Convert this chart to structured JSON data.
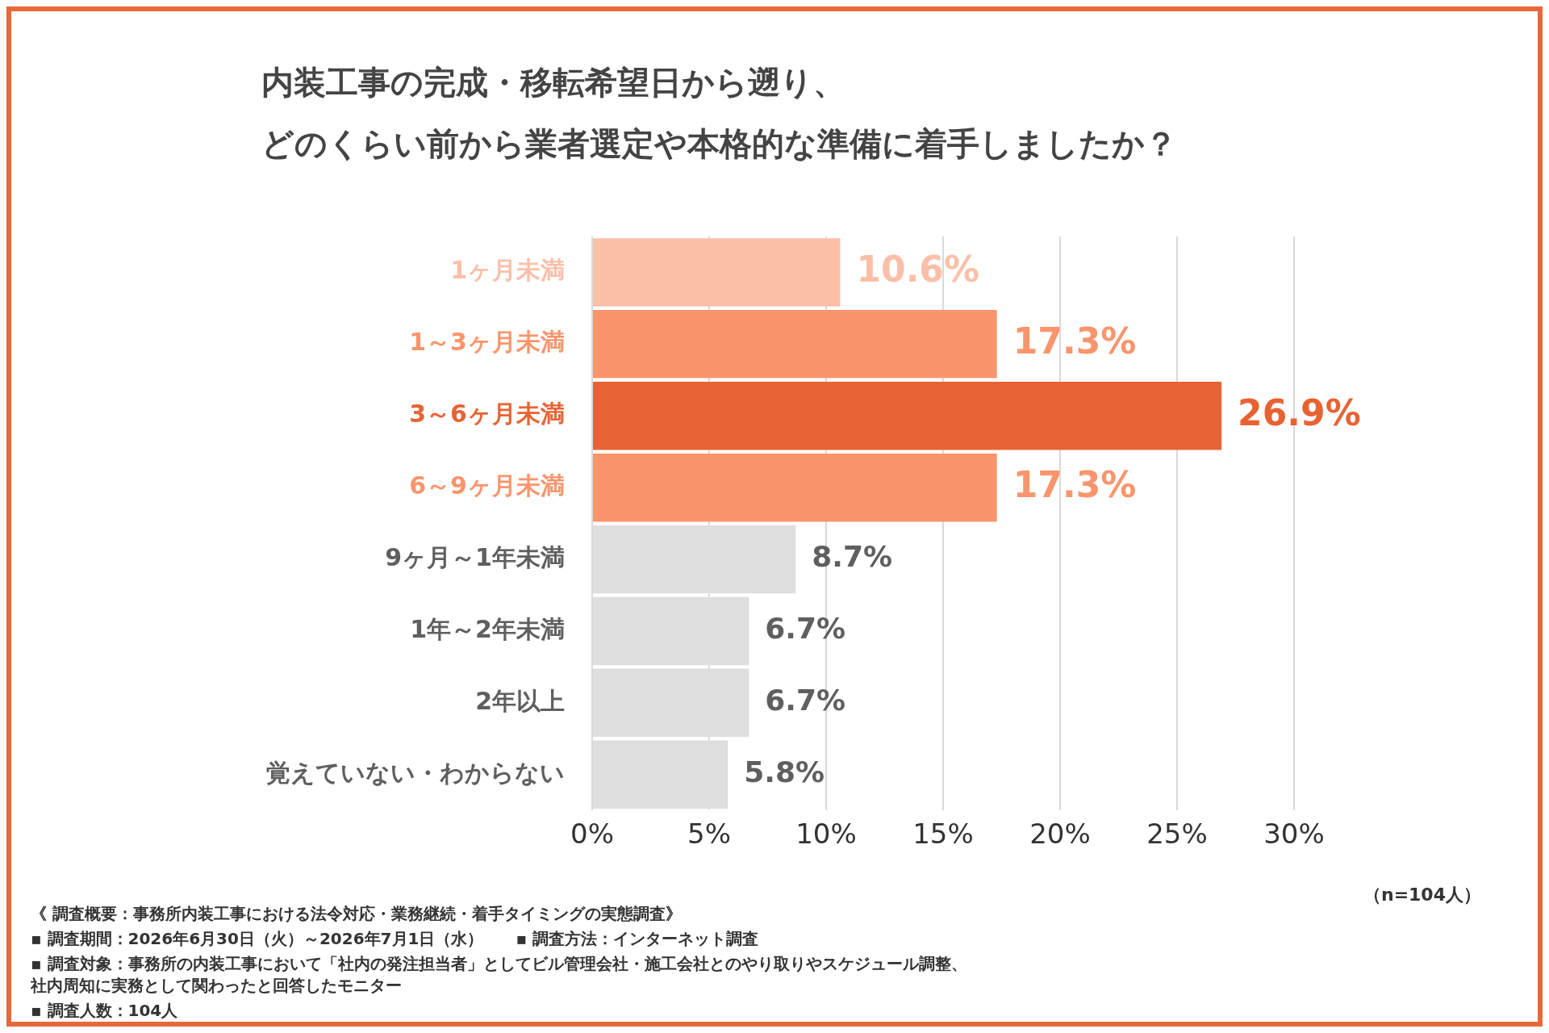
{
  "chart_data": {
    "type": "bar",
    "orientation": "horizontal",
    "title": "内装工事の完成・移転希望日から遡り、どのくらい前から業者選定や本格的な準備に着手しましたか？",
    "categories": [
      "1ヶ月未満",
      "1～3ヶ月未満",
      "3～6ヶ月未満",
      "6～9ヶ月未満",
      "9ヶ月～1年未満",
      "1年～2年未満",
      "2年以上",
      "覚えていない・わからない"
    ],
    "values": [
      10.6,
      17.3,
      26.9,
      17.3,
      8.7,
      6.7,
      6.7,
      5.8
    ],
    "value_labels": [
      "10.6%",
      "17.3%",
      "26.9%",
      "17.3%",
      "8.7%",
      "6.7%",
      "6.7%",
      "5.8%"
    ],
    "colors": [
      "#fbbfa8",
      "#f9956c",
      "#e86333",
      "#f9956c",
      "#dedede",
      "#dedede",
      "#dedede",
      "#dedede"
    ],
    "xlim": [
      0,
      30
    ],
    "xticks": [
      {
        "value": 0,
        "label": "0%"
      },
      {
        "value": 5,
        "label": "5%"
      },
      {
        "value": 10,
        "label": "10%"
      },
      {
        "value": 15,
        "label": "15%"
      },
      {
        "value": 20,
        "label": "20%"
      },
      {
        "value": 25,
        "label": "25%"
      },
      {
        "value": 30,
        "label": "30%"
      }
    ],
    "grid": "x",
    "annotations": [
      "（n=104人）",
      "《 調査概要：事務所内装工事における法令対応・業務継続・着手タイミングの実態調査》",
      "▪ 調査期間：2026年6月30日（火）～2026年7月1日（水）",
      "▪ 調査方法：インターネット調査",
      "▪ 調査対象：事務所の内装工事において「社内の発注担当者」としてビル管理会社・施工会社とのやり取りやスケジュール調整、社内周知に実務として関わったと回答したモニター",
      "▪ 調査人数：104人"
    ]
  }
}
